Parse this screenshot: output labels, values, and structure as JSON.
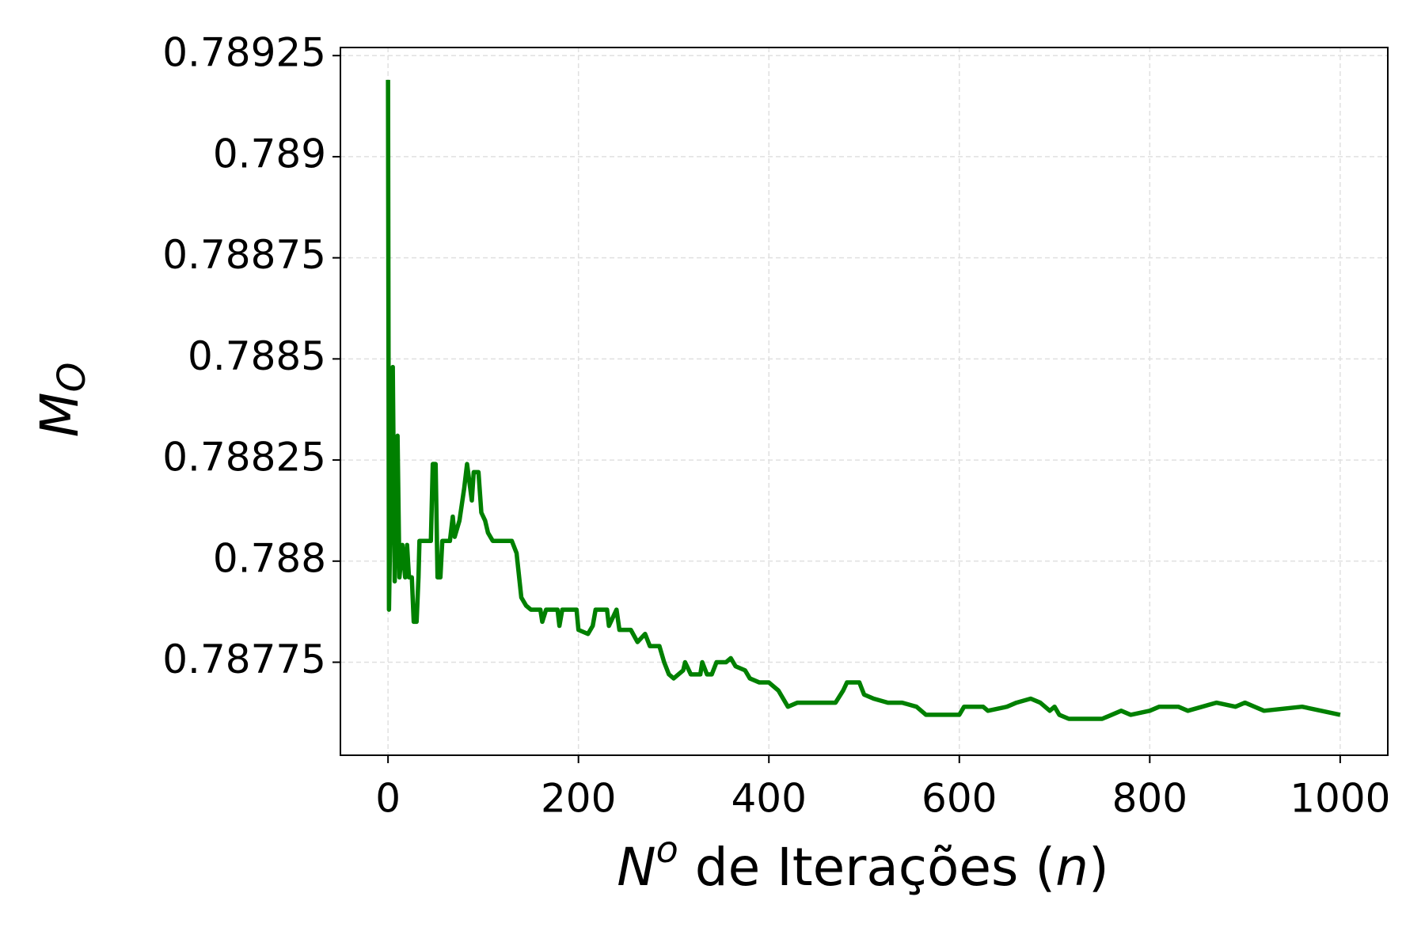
{
  "chart_data": {
    "type": "line",
    "xlabel": [
      "N",
      "o",
      " de Iterações (",
      "n",
      ")"
    ],
    "ylabel": [
      "M",
      "O"
    ],
    "xlim": [
      -50,
      1050
    ],
    "xticks": [
      0,
      200,
      400,
      600,
      800,
      1000
    ],
    "ylim": [
      0.78752,
      0.78927
    ],
    "yticks": [
      0.78775,
      0.788,
      0.78825,
      0.7885,
      0.78875,
      0.789,
      0.78925
    ],
    "grid": true,
    "series": [
      {
        "color": "#008000",
        "x": [
          0,
          1,
          5,
          7,
          10,
          12,
          15,
          18,
          20,
          22,
          25,
          27,
          30,
          32,
          33,
          40,
          45,
          47,
          50,
          52,
          55,
          57,
          65,
          68,
          70,
          75,
          80,
          83,
          88,
          90,
          95,
          98,
          102,
          105,
          110,
          130,
          135,
          140,
          145,
          150,
          160,
          162,
          166,
          178,
          180,
          183,
          198,
          200,
          210,
          215,
          218,
          230,
          232,
          240,
          243,
          255,
          262,
          270,
          275,
          285,
          290,
          295,
          300,
          310,
          312,
          318,
          328,
          330,
          335,
          340,
          345,
          355,
          360,
          365,
          375,
          380,
          390,
          400,
          410,
          420,
          430,
          470,
          478,
          482,
          495,
          500,
          510,
          525,
          540,
          555,
          565,
          580,
          600,
          605,
          625,
          630,
          650,
          660,
          675,
          685,
          695,
          700,
          705,
          715,
          750,
          760,
          770,
          780,
          800,
          810,
          830,
          840,
          870,
          890,
          900,
          920,
          960,
          980,
          1000
        ],
        "values": [
          0.78919,
          0.78788,
          0.78848,
          0.78795,
          0.78831,
          0.78796,
          0.78804,
          0.78796,
          0.78804,
          0.78796,
          0.78796,
          0.78785,
          0.78785,
          0.78796,
          0.78805,
          0.78805,
          0.78805,
          0.78824,
          0.78824,
          0.78796,
          0.78796,
          0.78805,
          0.78805,
          0.78811,
          0.78806,
          0.7881,
          0.78818,
          0.78824,
          0.78815,
          0.78822,
          0.78822,
          0.78812,
          0.7881,
          0.78807,
          0.78805,
          0.78805,
          0.78802,
          0.78791,
          0.78789,
          0.78788,
          0.78788,
          0.78785,
          0.78788,
          0.78788,
          0.78784,
          0.78788,
          0.78788,
          0.78783,
          0.78782,
          0.78784,
          0.78788,
          0.78788,
          0.78784,
          0.78788,
          0.78783,
          0.78783,
          0.7878,
          0.78782,
          0.78779,
          0.78779,
          0.78775,
          0.78772,
          0.78771,
          0.78773,
          0.78775,
          0.78772,
          0.78772,
          0.78775,
          0.78772,
          0.78772,
          0.78775,
          0.78775,
          0.78776,
          0.78774,
          0.78773,
          0.78771,
          0.7877,
          0.7877,
          0.78768,
          0.78764,
          0.78765,
          0.78765,
          0.78768,
          0.7877,
          0.7877,
          0.78767,
          0.78766,
          0.78765,
          0.78765,
          0.78764,
          0.78762,
          0.78762,
          0.78762,
          0.78764,
          0.78764,
          0.78763,
          0.78764,
          0.78765,
          0.78766,
          0.78765,
          0.78763,
          0.78764,
          0.78762,
          0.78761,
          0.78761,
          0.78762,
          0.78763,
          0.78762,
          0.78763,
          0.78764,
          0.78764,
          0.78763,
          0.78765,
          0.78764,
          0.78765,
          0.78763,
          0.78764,
          0.78763,
          0.78762
        ]
      }
    ]
  }
}
